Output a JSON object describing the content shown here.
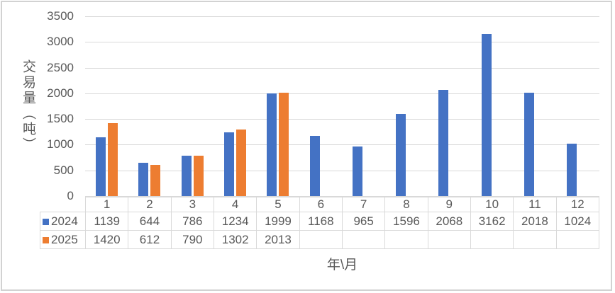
{
  "chart_data": {
    "type": "bar",
    "title": "",
    "categories": [
      "1",
      "2",
      "3",
      "4",
      "5",
      "6",
      "7",
      "8",
      "9",
      "10",
      "11",
      "12"
    ],
    "series": [
      {
        "name": "2024",
        "color": "#4472C4",
        "values": [
          1139,
          644,
          786,
          1234,
          1999,
          1168,
          965,
          1596,
          2068,
          3162,
          2018,
          1024
        ]
      },
      {
        "name": "2025",
        "color": "#ED7D31",
        "values": [
          1420,
          612,
          790,
          1302,
          2013,
          null,
          null,
          null,
          null,
          null,
          null,
          null
        ]
      }
    ],
    "ylabel": "交易量（吨）",
    "xlabel": "年\\月",
    "ylim": [
      0,
      3500
    ],
    "ytick_step": 500,
    "yticks": [
      "3500",
      "3000",
      "2500",
      "2000",
      "1500",
      "1000",
      "500",
      "0"
    ],
    "grid": true,
    "legend_position": "table-left",
    "colors": {
      "grid": "#d9d9d9",
      "text": "#595959",
      "table_border": "#d9d9d9",
      "frame_border": "#d2d2d2"
    }
  }
}
